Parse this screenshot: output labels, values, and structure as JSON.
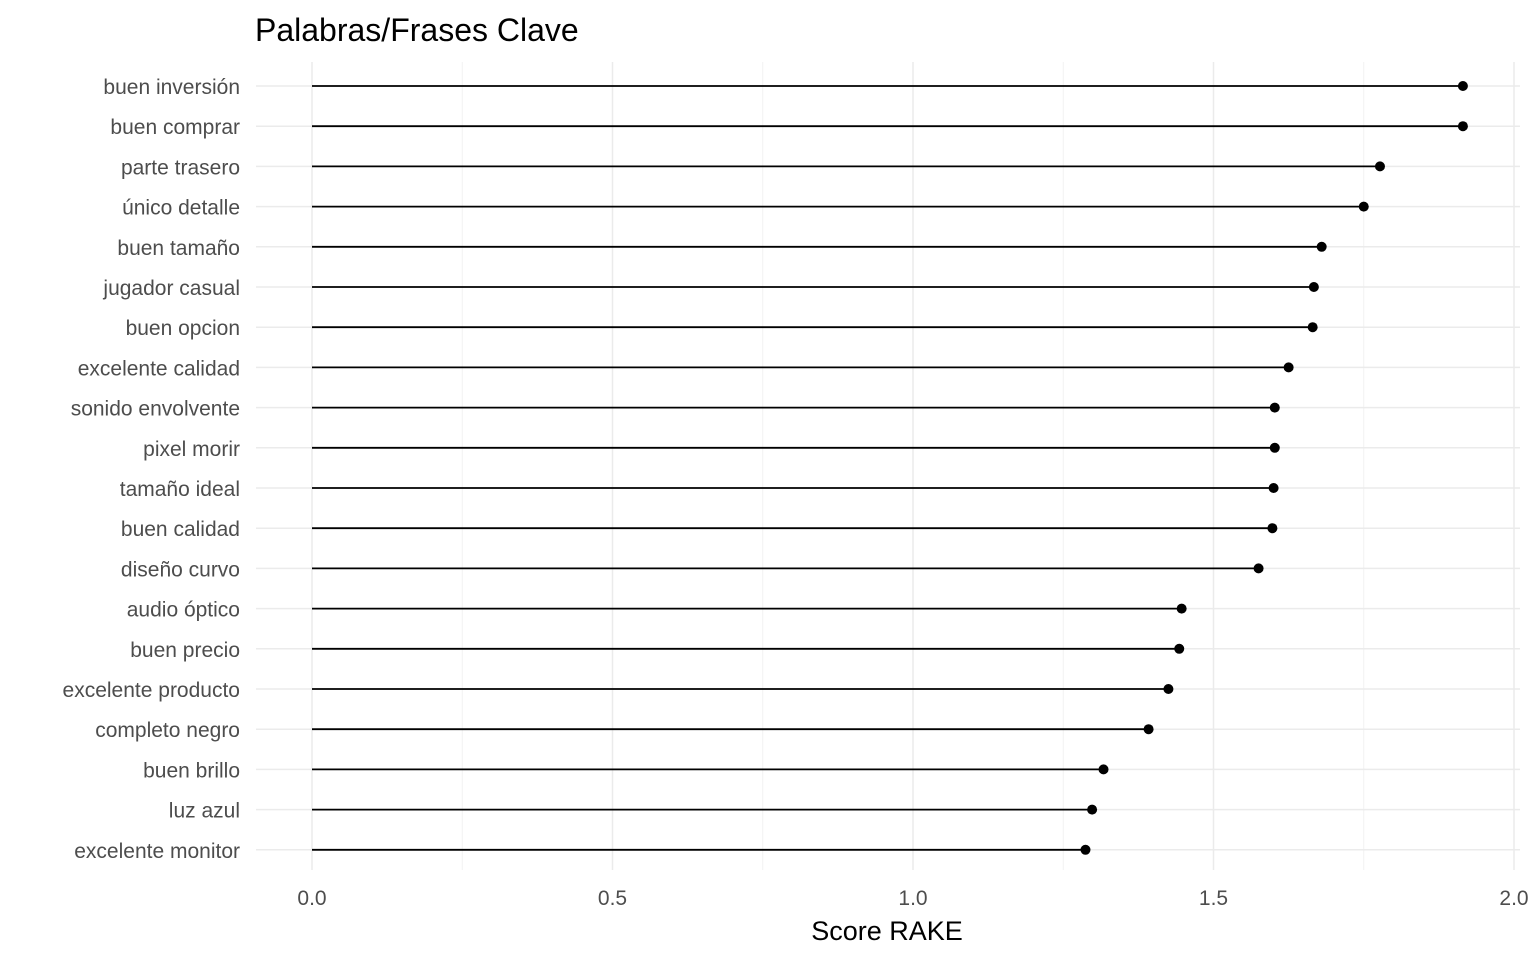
{
  "chart_data": {
    "type": "lollipop",
    "title": "Palabras/Frases Clave",
    "xlabel": "Score RAKE",
    "ylabel": "",
    "xlim": [
      0,
      2.0
    ],
    "xticks": [
      "0.0",
      "0.5",
      "1.0",
      "1.5",
      "2.0"
    ],
    "grid": true,
    "categories": [
      "buen inversión",
      "buen comprar",
      "parte trasero",
      "único detalle",
      "buen tamaño",
      "jugador casual",
      "buen opcion",
      "excelente calidad",
      "sonido envolvente",
      "pixel morir",
      "tamaño ideal",
      "buen calidad",
      "diseño curvo",
      "audio óptico",
      "buen precio",
      "excelente producto",
      "completo negro",
      "buen brillo",
      "luz azul",
      "excelente monitor"
    ],
    "values": [
      1.915,
      1.915,
      1.777,
      1.75,
      1.68,
      1.667,
      1.665,
      1.625,
      1.602,
      1.602,
      1.6,
      1.598,
      1.575,
      1.447,
      1.443,
      1.425,
      1.392,
      1.317,
      1.298,
      1.287
    ]
  }
}
